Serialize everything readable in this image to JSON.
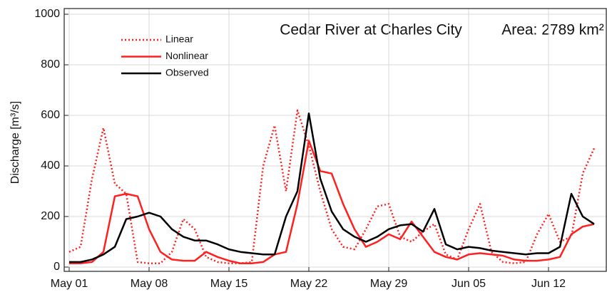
{
  "chart_data": {
    "type": "line",
    "title": "Cedar River at Charles City",
    "annotation": "Area: 2789 km²",
    "y_label": "Discharge [m³/s]",
    "x": [
      "May 01",
      "May 02",
      "May 03",
      "May 04",
      "May 05",
      "May 06",
      "May 07",
      "May 08",
      "May 09",
      "May 10",
      "May 11",
      "May 12",
      "May 13",
      "May 14",
      "May 15",
      "May 16",
      "May 17",
      "May 18",
      "May 19",
      "May 20",
      "May 21",
      "May 22",
      "May 23",
      "May 24",
      "May 25",
      "May 26",
      "May 27",
      "May 28",
      "May 29",
      "May 30",
      "May 31",
      "Jun 01",
      "Jun 02",
      "Jun 03",
      "Jun 04",
      "Jun 05",
      "Jun 06",
      "Jun 07",
      "Jun 08",
      "Jun 09",
      "Jun 10",
      "Jun 11",
      "Jun 12",
      "Jun 13",
      "Jun 14",
      "Jun 15",
      "Jun 16"
    ],
    "series": [
      {
        "name": "Linear",
        "color": "#ff2020",
        "dash": true,
        "values": [
          60,
          80,
          350,
          550,
          330,
          290,
          20,
          15,
          15,
          60,
          190,
          150,
          40,
          20,
          15,
          15,
          20,
          400,
          560,
          300,
          620,
          480,
          300,
          150,
          80,
          70,
          150,
          240,
          250,
          120,
          100,
          140,
          170,
          50,
          30,
          150,
          250,
          60,
          20,
          15,
          20,
          130,
          210,
          100,
          120,
          370,
          470
        ]
      },
      {
        "name": "Nonlinear",
        "color": "#ff2020",
        "dash": false,
        "values": [
          15,
          15,
          20,
          60,
          280,
          290,
          280,
          150,
          60,
          30,
          25,
          25,
          60,
          40,
          25,
          15,
          15,
          20,
          50,
          60,
          250,
          500,
          380,
          370,
          250,
          150,
          80,
          100,
          130,
          110,
          180,
          120,
          60,
          40,
          30,
          50,
          55,
          50,
          45,
          30,
          25,
          25,
          30,
          40,
          130,
          160,
          170
        ]
      },
      {
        "name": "Observed",
        "color": "#000000",
        "dash": false,
        "values": [
          20,
          20,
          30,
          50,
          80,
          190,
          200,
          215,
          200,
          150,
          120,
          105,
          105,
          90,
          70,
          60,
          55,
          50,
          50,
          200,
          300,
          608,
          350,
          220,
          150,
          120,
          100,
          120,
          150,
          165,
          170,
          140,
          230,
          90,
          70,
          80,
          75,
          65,
          60,
          55,
          50,
          55,
          55,
          80,
          290,
          200,
          170
        ]
      }
    ],
    "xlim": [
      "May 01",
      "Jun 16"
    ],
    "xticks": [
      "May 01",
      "May 08",
      "May 15",
      "May 22",
      "May 29",
      "Jun 05",
      "Jun 12"
    ],
    "ylim": [
      0,
      1000
    ],
    "yticks": [
      0,
      200,
      400,
      600,
      800,
      1000
    ],
    "grid": true,
    "legend": "top-left"
  }
}
